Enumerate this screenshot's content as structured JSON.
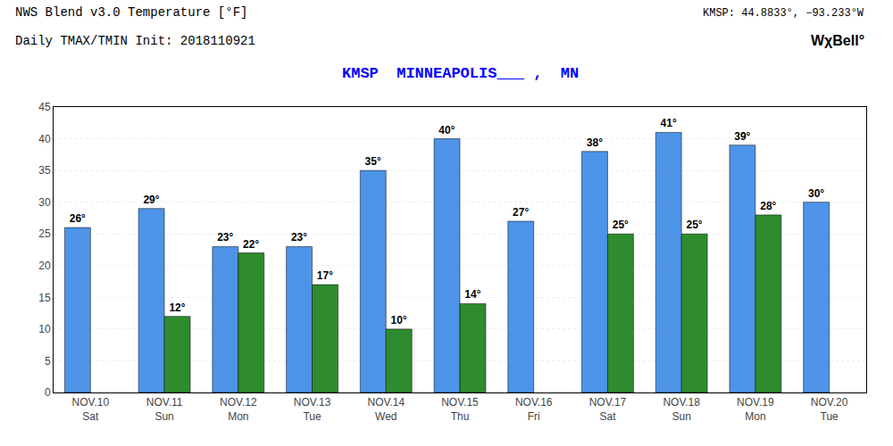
{
  "chart_data": {
    "type": "bar",
    "title": "NWS Blend v3.0 Temperature [°F]",
    "subtitle": "Daily TMAX/TMIN Init: 2018110921",
    "annotations": [
      {
        "text": "KMSP  MINNEAPOLIS___ ,  MN",
        "color": "blue"
      },
      {
        "text": "KMSP: 44.8833°, −93.233°W",
        "color": "black"
      },
      {
        "text": "WχBell°",
        "color": "black"
      }
    ],
    "categories": [
      "NOV.10",
      "NOV.11",
      "NOV.12",
      "NOV.13",
      "NOV.14",
      "NOV.15",
      "NOV.16",
      "NOV.17",
      "NOV.18",
      "NOV.19",
      "NOV.20"
    ],
    "days": [
      "Sat",
      "Sun",
      "Mon",
      "Tue",
      "Wed",
      "Thu",
      "Fri",
      "Sat",
      "Sun",
      "Mon",
      "Tue"
    ],
    "series": [
      {
        "color": "#4d94e8",
        "values": [
          26,
          29,
          23,
          23,
          35,
          40,
          27,
          38,
          41,
          39,
          30
        ],
        "value_labels": [
          "26°",
          "29°",
          "23°",
          "23°",
          "35°",
          "40°",
          "27°",
          "38°",
          "41°",
          "39°",
          "30°"
        ]
      },
      {
        "color": "#2e8b2e",
        "values": [
          null,
          12,
          22,
          17,
          10,
          14,
          null,
          25,
          25,
          28,
          null
        ],
        "value_labels": [
          null,
          "12°",
          "22°",
          "17°",
          "10°",
          "14°",
          null,
          "25°",
          "25°",
          "28°",
          null
        ]
      }
    ],
    "ylim": [
      0,
      45
    ],
    "yticks": [
      0,
      5,
      10,
      15,
      20,
      25,
      30,
      35,
      40,
      45
    ],
    "grid": true,
    "data_labels": true
  }
}
